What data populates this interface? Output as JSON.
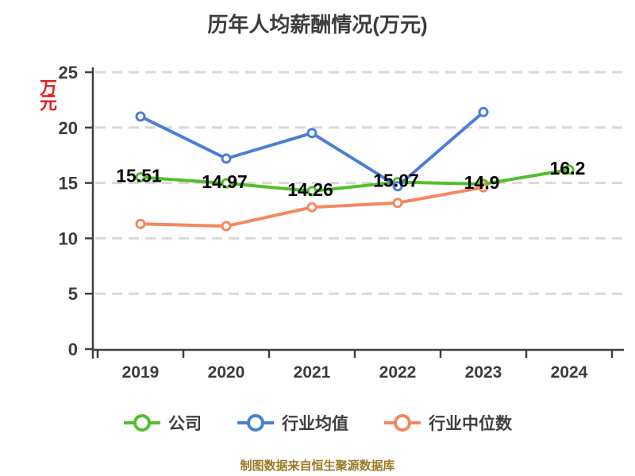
{
  "title": "历年人均薪酬情况(万元)",
  "y_axis_unit": "万元",
  "footer": "制图数据来自恒生聚源数据库",
  "colors": {
    "title": "#3d3d3d",
    "axis": "#3f3f3f",
    "tick_label": "#3b3b3b",
    "grid": "#d9d9d9",
    "data_label": "#000000",
    "unit_label": "#e01f1f",
    "footer": "#9d7826",
    "background": "#ffffff"
  },
  "chart_data": {
    "type": "line",
    "title": "历年人均薪酬情况(万元)",
    "xlabel": "",
    "ylabel": "万元",
    "categories": [
      "2019",
      "2020",
      "2021",
      "2022",
      "2023",
      "2024"
    ],
    "series": [
      {
        "name": "公司",
        "color": "#52bf2a",
        "values": [
          15.51,
          14.97,
          14.26,
          15.07,
          14.9,
          16.2
        ],
        "labels": [
          "15.51",
          "14.97",
          "14.26",
          "15.07",
          "14.9",
          "16.2"
        ]
      },
      {
        "name": "行业均值",
        "color": "#4a7fd6",
        "values": [
          21.0,
          17.2,
          19.5,
          14.7,
          21.4,
          null
        ],
        "labels": []
      },
      {
        "name": "行业中位数",
        "color": "#f4875f",
        "values": [
          11.3,
          11.1,
          12.8,
          13.2,
          14.6,
          null
        ],
        "labels": []
      }
    ],
    "ylim": [
      0,
      25
    ],
    "y_ticks": [
      0,
      5,
      10,
      15,
      20,
      25
    ],
    "grid": "horizontal-dashed",
    "legend_position": "bottom",
    "marker": "open-circle"
  }
}
